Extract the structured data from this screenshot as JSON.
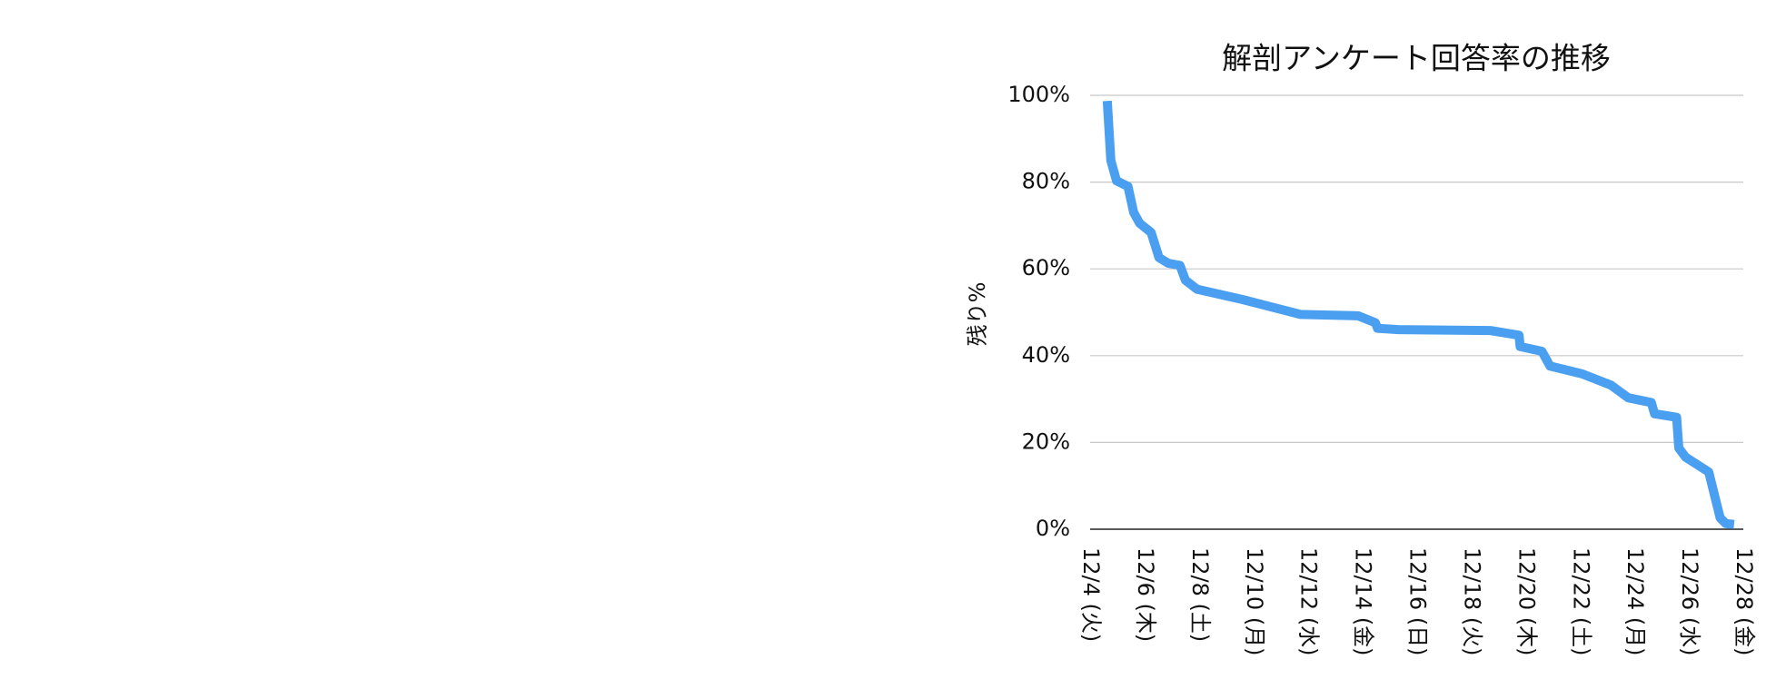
{
  "chart_data": {
    "type": "line",
    "title": "解剖アンケート回答率の推移",
    "ylabel": "残り%",
    "series": [
      {
        "name": "残り%",
        "color": "#4a9ff0",
        "x": [
          4.63,
          4.76,
          4.97,
          5.39,
          5.6,
          5.82,
          6.24,
          6.53,
          6.87,
          7.3,
          7.5,
          7.93,
          9.62,
          11.73,
          13.84,
          14.48,
          14.56,
          15.32,
          18.7,
          19.76,
          19.8,
          20.6,
          20.9,
          22.08,
          23.14,
          23.77,
          24.62,
          24.74,
          25.55,
          25.63,
          25.88,
          26.73,
          27.15,
          27.36,
          27.66
        ],
        "values": [
          98.7,
          85,
          80.3,
          79,
          73,
          70.5,
          68.4,
          62.6,
          61.3,
          60.8,
          57.4,
          55.3,
          52.9,
          49.5,
          49.2,
          47.6,
          46.3,
          46,
          45.8,
          44.7,
          42.1,
          41,
          37.6,
          35.8,
          33.2,
          30.3,
          29.2,
          26.6,
          25.8,
          18.7,
          16.6,
          13.2,
          2.6,
          1.3,
          1.1
        ]
      }
    ],
    "xlim": [
      4,
      28
    ],
    "xticks": [
      {
        "value": 4,
        "label": "12/4 (火)"
      },
      {
        "value": 6,
        "label": "12/6 (木)"
      },
      {
        "value": 8,
        "label": "12/8 (土)"
      },
      {
        "value": 10,
        "label": "12/10 (月)"
      },
      {
        "value": 12,
        "label": "12/12 (水)"
      },
      {
        "value": 14,
        "label": "12/14 (金)"
      },
      {
        "value": 16,
        "label": "12/16 (日)"
      },
      {
        "value": 18,
        "label": "12/18 (火)"
      },
      {
        "value": 20,
        "label": "12/20 (木)"
      },
      {
        "value": 22,
        "label": "12/22 (土)"
      },
      {
        "value": 24,
        "label": "12/24 (月)"
      },
      {
        "value": 26,
        "label": "12/26 (水)"
      },
      {
        "value": 28,
        "label": "12/28 (金)"
      }
    ],
    "ylim": [
      0,
      100
    ],
    "yticks": [
      {
        "value": 0,
        "label": "0%"
      },
      {
        "value": 20,
        "label": "20%"
      },
      {
        "value": 40,
        "label": "40%"
      },
      {
        "value": 60,
        "label": "60%"
      },
      {
        "value": 80,
        "label": "80%"
      },
      {
        "value": 100,
        "label": "100%"
      }
    ],
    "grid": true
  }
}
